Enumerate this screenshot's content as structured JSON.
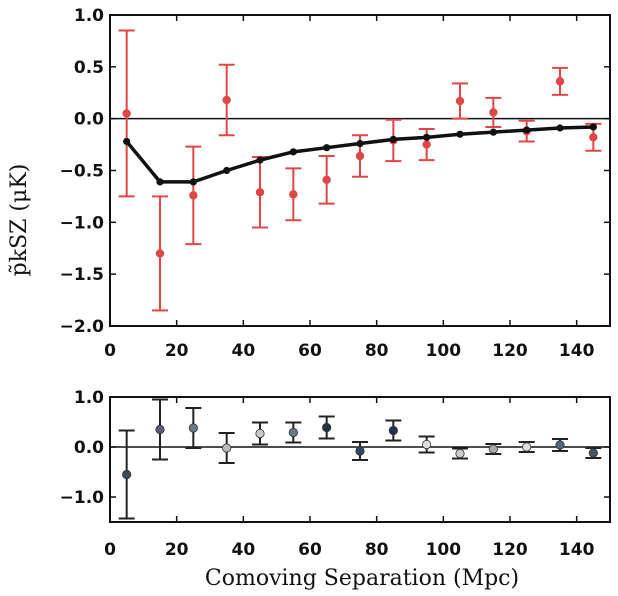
{
  "chart_data": [
    {
      "type": "scatter",
      "panel": "top",
      "xlim": [
        0,
        150
      ],
      "ylim": [
        -2.0,
        1.0
      ],
      "xticks": [
        "0",
        "20",
        "40",
        "60",
        "80",
        "100",
        "120",
        "140"
      ],
      "yticks": [
        "1.0",
        "0.5",
        "0.0",
        "−0.5",
        "−1.0",
        "−1.5",
        "−2.0"
      ],
      "ylabel": "p̃kSZ (μK)",
      "xlabel": "",
      "reference_line": 0,
      "series": [
        {
          "style": "errorbar",
          "color": "#e04646",
          "x": [
            5,
            15,
            25,
            35,
            45,
            55,
            65,
            75,
            85,
            95,
            105,
            115,
            125,
            135,
            145
          ],
          "y": [
            0.05,
            -1.3,
            -0.74,
            0.18,
            -0.71,
            -0.73,
            -0.59,
            -0.36,
            -0.21,
            -0.25,
            0.17,
            0.06,
            -0.12,
            0.36,
            -0.18
          ],
          "err": [
            0.8,
            0.55,
            0.47,
            0.34,
            0.34,
            0.25,
            0.23,
            0.2,
            0.2,
            0.15,
            0.17,
            0.14,
            0.1,
            0.13,
            0.13
          ]
        },
        {
          "style": "line",
          "color": "#111111",
          "x": [
            5,
            15,
            25,
            35,
            45,
            55,
            65,
            75,
            85,
            95,
            105,
            115,
            125,
            135,
            145
          ],
          "y": [
            -0.22,
            -0.61,
            -0.61,
            -0.5,
            -0.4,
            -0.32,
            -0.28,
            -0.24,
            -0.2,
            -0.18,
            -0.15,
            -0.13,
            -0.11,
            -0.09,
            -0.08
          ]
        }
      ]
    },
    {
      "type": "scatter",
      "panel": "bottom",
      "xlim": [
        0,
        150
      ],
      "ylim": [
        -1.5,
        1.0
      ],
      "xticks": [
        "0",
        "20",
        "40",
        "60",
        "80",
        "100",
        "120",
        "140"
      ],
      "yticks": [
        "1.0",
        "0.0",
        "−1.0"
      ],
      "xlabel": "Comoving Separation (Mpc)",
      "reference_line": 0,
      "series": [
        {
          "style": "errorbar",
          "color": "#222222",
          "x": [
            5,
            15,
            25,
            35,
            45,
            55,
            65,
            75,
            85,
            95,
            105,
            115,
            125,
            135,
            145
          ],
          "y": [
            -0.55,
            0.35,
            0.38,
            -0.02,
            0.27,
            0.29,
            0.39,
            -0.08,
            0.33,
            0.05,
            -0.13,
            -0.04,
            0.0,
            0.04,
            -0.12
          ],
          "err": [
            0.88,
            0.6,
            0.4,
            0.3,
            0.22,
            0.2,
            0.22,
            0.18,
            0.2,
            0.16,
            0.1,
            0.1,
            0.1,
            0.12,
            0.1
          ],
          "marker_colors": [
            "#3a4a5a",
            "#556070",
            "#6a7a8a",
            "#bbbbbb",
            "#c8c8c8",
            "#667788",
            "#223344",
            "#334466",
            "#223355",
            "#dddddd",
            "#cccccc",
            "#aaaaaa",
            "#dddddd",
            "#556677",
            "#445566"
          ]
        }
      ]
    }
  ]
}
